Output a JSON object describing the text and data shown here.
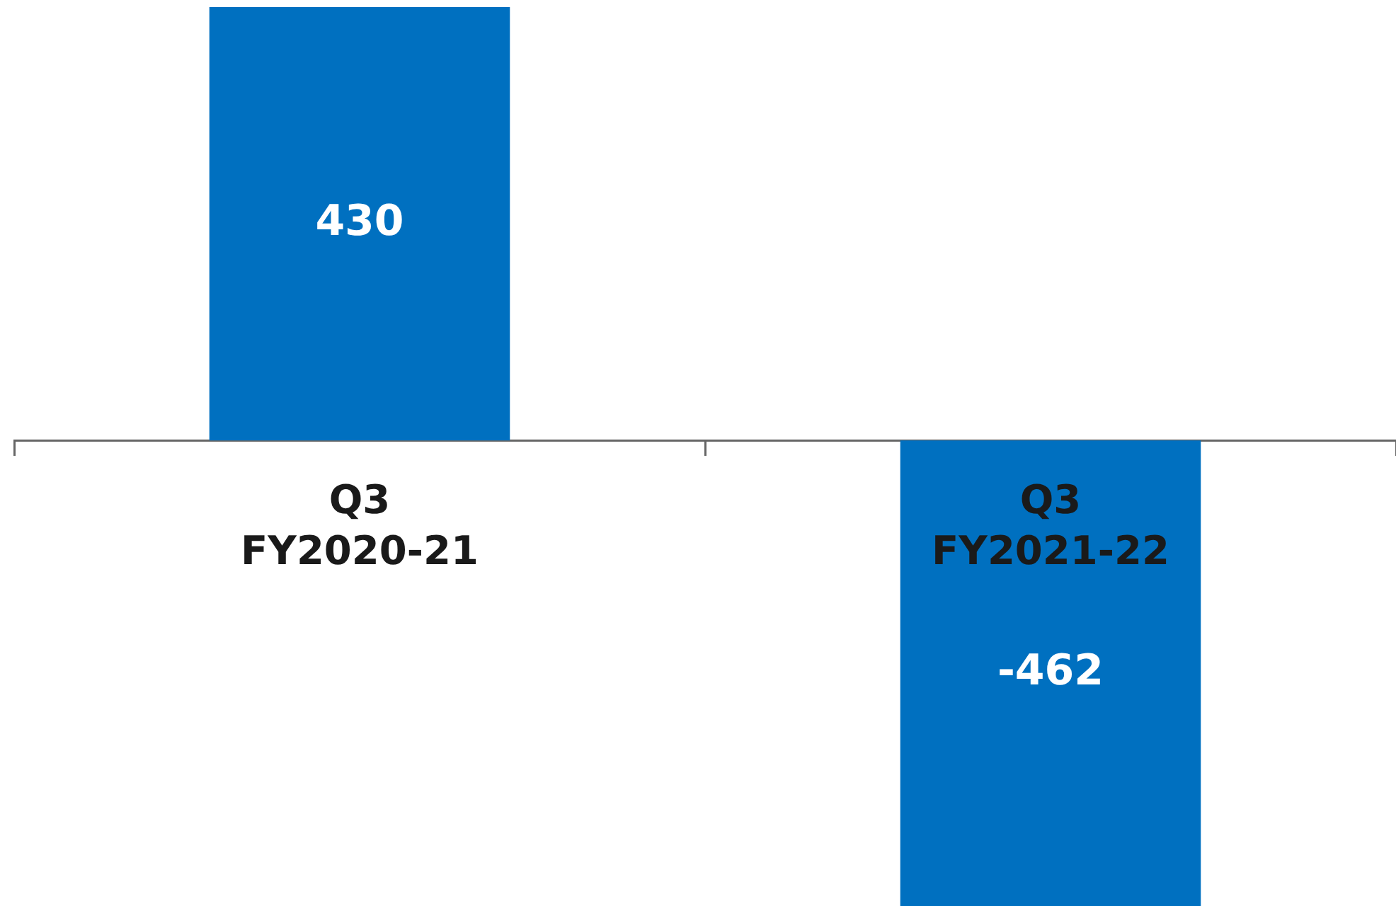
{
  "chart_data": {
    "type": "bar",
    "categories": [
      "Q3 FY2020-21",
      "Q3 FY2021-22"
    ],
    "values": [
      430,
      -462
    ],
    "color": "#0070c0",
    "data_labels": true,
    "legend": false,
    "grid": false
  }
}
